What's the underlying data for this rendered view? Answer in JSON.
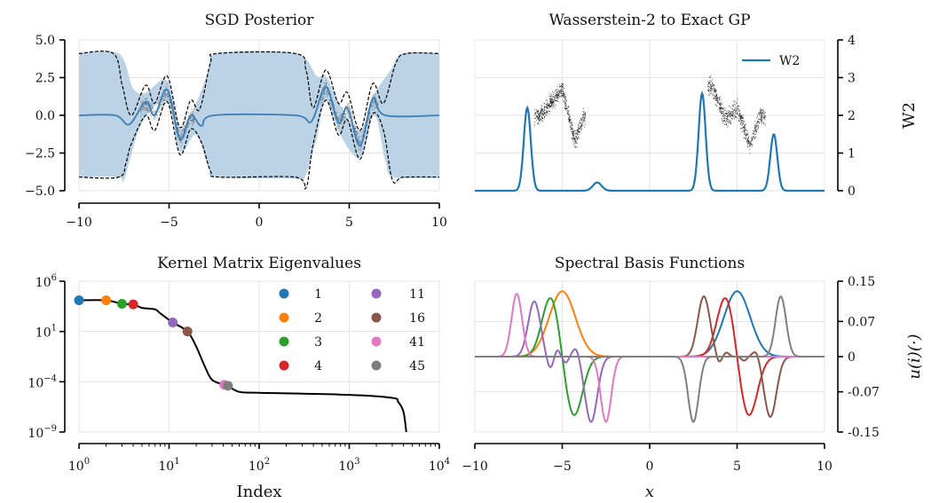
{
  "chart_data": [
    {
      "type": "line",
      "title": "SGD Posterior",
      "xlim": [
        -10,
        10
      ],
      "ylim": [
        -5,
        5
      ],
      "xticks": [
        -10,
        -5,
        0,
        5,
        10
      ],
      "xtick_labels": [
        "−10",
        "−5",
        "0",
        "5",
        "10"
      ],
      "yticks": [
        5,
        2.5,
        0,
        -2.5,
        -5
      ],
      "ytick_labels": [
        "5.0",
        "2.5",
        "0.0",
        "−2.5",
        "−5.0"
      ],
      "grid": true,
      "colors": {
        "mean": "#3b7fb8",
        "band": "#bcd3e6",
        "dashed": "#000000",
        "samples": "#333333"
      },
      "mean": [
        [
          -10,
          0
        ],
        [
          -8,
          0
        ],
        [
          -7.2,
          -0.6
        ],
        [
          -6.3,
          0.9
        ],
        [
          -5.8,
          0
        ],
        [
          -5.1,
          1.7
        ],
        [
          -4.4,
          -1.6
        ],
        [
          -3.8,
          0
        ],
        [
          -3.2,
          -0.7
        ],
        [
          -2.5,
          0
        ],
        [
          2,
          0
        ],
        [
          2.9,
          -0.4
        ],
        [
          3.7,
          1.9
        ],
        [
          4.4,
          -0.5
        ],
        [
          4.9,
          0.5
        ],
        [
          5.6,
          -2.0
        ],
        [
          6.3,
          1.1
        ],
        [
          7,
          0
        ],
        [
          10,
          0
        ]
      ],
      "band_upper": [
        [
          -10,
          4.1
        ],
        [
          -7.8,
          4.1
        ],
        [
          -7,
          1.8
        ],
        [
          -6.3,
          1.5
        ],
        [
          -5.1,
          2.3
        ],
        [
          -4.4,
          -0.9
        ],
        [
          -3.5,
          0.8
        ],
        [
          -2.8,
          3
        ],
        [
          -2.3,
          4.1
        ],
        [
          2,
          4.1
        ],
        [
          3.2,
          2.6
        ],
        [
          3.7,
          2.6
        ],
        [
          4.5,
          0.7
        ],
        [
          5.6,
          -1.0
        ],
        [
          6.4,
          1.4
        ],
        [
          7.3,
          3.0
        ],
        [
          8,
          4.1
        ],
        [
          10,
          4.1
        ]
      ],
      "band_lower": [
        [
          -10,
          -4.1
        ],
        [
          -7.8,
          -4.1
        ],
        [
          -7.5,
          -4.3
        ],
        [
          -6.5,
          -0.5
        ],
        [
          -5.1,
          0.9
        ],
        [
          -4.4,
          -2.4
        ],
        [
          -3.5,
          -1.3
        ],
        [
          -2.8,
          -3.5
        ],
        [
          -2.3,
          -4.1
        ],
        [
          2,
          -4.2
        ],
        [
          2.5,
          -4.2
        ],
        [
          3.2,
          -1.5
        ],
        [
          3.7,
          1.0
        ],
        [
          4.5,
          -1.3
        ],
        [
          5.6,
          -2.8
        ],
        [
          6.4,
          0
        ],
        [
          7,
          -3
        ],
        [
          7.5,
          -4.1
        ],
        [
          10,
          -4.1
        ]
      ],
      "exact_upper": [
        [
          -10,
          4.1
        ],
        [
          -8.1,
          4.1
        ],
        [
          -7.6,
          2.0
        ],
        [
          -7.1,
          0
        ],
        [
          -6.3,
          2.0
        ],
        [
          -5.8,
          0.8
        ],
        [
          -5.1,
          2.6
        ],
        [
          -4.4,
          -0.8
        ],
        [
          -3.8,
          1.0
        ],
        [
          -3.3,
          0.4
        ],
        [
          -2.7,
          3.5
        ],
        [
          -2.3,
          4.1
        ],
        [
          2,
          4.1
        ],
        [
          2.6,
          3.0
        ],
        [
          3.0,
          0.5
        ],
        [
          3.7,
          3.0
        ],
        [
          4.4,
          0.8
        ],
        [
          4.9,
          1.5
        ],
        [
          5.6,
          -1.0
        ],
        [
          6.3,
          2.1
        ],
        [
          6.9,
          0.8
        ],
        [
          7.6,
          3.5
        ],
        [
          8.2,
          4.1
        ],
        [
          10,
          4.1
        ]
      ],
      "exact_lower": [
        [
          -10,
          -4.1
        ],
        [
          -7.8,
          -4.1
        ],
        [
          -7.4,
          -3.2
        ],
        [
          -7.1,
          -1.9
        ],
        [
          -6.3,
          0
        ],
        [
          -5.8,
          -1
        ],
        [
          -5.1,
          0.9
        ],
        [
          -4.4,
          -2.6
        ],
        [
          -3.8,
          -0.9
        ],
        [
          -3.2,
          -1.8
        ],
        [
          -2.7,
          -3.7
        ],
        [
          -2.2,
          -4.1
        ],
        [
          2,
          -4.1
        ],
        [
          2.6,
          -4.8
        ],
        [
          3.0,
          -1.9
        ],
        [
          3.7,
          1.0
        ],
        [
          4.4,
          -1.3
        ],
        [
          4.9,
          -0.3
        ],
        [
          5.6,
          -2.9
        ],
        [
          6.3,
          0.1
        ],
        [
          6.9,
          -1.0
        ],
        [
          7.4,
          -4.3
        ],
        [
          8,
          -4.1
        ],
        [
          10,
          -4.1
        ]
      ],
      "observation_ranges": [
        [
          -6.6,
          -3.6
        ],
        [
          3.4,
          6.6
        ]
      ]
    },
    {
      "type": "line",
      "title": "Wasserstein-2 to Exact GP",
      "xlim": [
        -10,
        10
      ],
      "ylim": [
        0,
        4
      ],
      "yticks": [
        4,
        3,
        2,
        1,
        0
      ],
      "ytick_labels": [
        "4",
        "3",
        "2",
        "1",
        "0"
      ],
      "ylabel": "W2",
      "legend": {
        "label": "W2",
        "placement": "top-right"
      },
      "grid": true,
      "color": "#1f77b4",
      "peaks": [
        [
          -7,
          2.2,
          0.2
        ],
        [
          -3,
          0.22,
          0.25
        ],
        [
          3,
          2.58,
          0.2
        ],
        [
          7.1,
          1.5,
          0.2
        ]
      ],
      "scatter_curve": [
        [
          -6.3,
          2.0
        ],
        [
          -5.0,
          2.7
        ],
        [
          -4.3,
          1.3
        ],
        [
          -3.8,
          2.0
        ],
        [
          3.5,
          2.8
        ],
        [
          4.3,
          1.9
        ],
        [
          5.0,
          2.2
        ],
        [
          5.7,
          1.2
        ],
        [
          6.3,
          2.0
        ]
      ]
    },
    {
      "type": "line",
      "title": "Kernel Matrix Eigenvalues",
      "xlabel": "Index",
      "xscale": "log",
      "yscale": "log",
      "xlim_log10": [
        0,
        4
      ],
      "ylim_log10": [
        -9,
        6
      ],
      "xtick_labels": [
        [
          "10",
          "0"
        ],
        [
          "10",
          "1"
        ],
        [
          "10",
          "2"
        ],
        [
          "10",
          "3"
        ],
        [
          "10",
          "4"
        ]
      ],
      "ytick_labels": [
        [
          "10",
          "6"
        ],
        [
          "10",
          "1"
        ],
        [
          "10",
          "−4"
        ],
        [
          "10",
          "−9"
        ]
      ],
      "yticks_log10": [
        6,
        1,
        -4,
        -9
      ],
      "grid": true,
      "curve_log10": [
        [
          1,
          4.1
        ],
        [
          2,
          4.1
        ],
        [
          3,
          3.75
        ],
        [
          4,
          3.7
        ],
        [
          5,
          3.35
        ],
        [
          7,
          3.2
        ],
        [
          8,
          2.8
        ],
        [
          11,
          1.9
        ],
        [
          16,
          1.0
        ],
        [
          20,
          -0.5
        ],
        [
          25,
          -2.5
        ],
        [
          30,
          -3.8
        ],
        [
          41,
          -4.3
        ],
        [
          45,
          -4.4
        ],
        [
          60,
          -5.0
        ],
        [
          100,
          -5.1
        ],
        [
          1000,
          -5.3
        ],
        [
          3000,
          -5.6
        ],
        [
          3500,
          -6
        ],
        [
          4000,
          -7
        ],
        [
          4300,
          -9
        ]
      ],
      "markers": [
        {
          "index": 1,
          "log10_value": 4.1,
          "label": "1",
          "color": "#1f77b4"
        },
        {
          "index": 2,
          "log10_value": 4.1,
          "label": "2",
          "color": "#ff7f0e"
        },
        {
          "index": 3,
          "log10_value": 3.75,
          "label": "3",
          "color": "#2ca02c"
        },
        {
          "index": 4,
          "log10_value": 3.7,
          "label": "4",
          "color": "#d62728"
        },
        {
          "index": 11,
          "log10_value": 1.9,
          "label": "11",
          "color": "#9467bd"
        },
        {
          "index": 16,
          "log10_value": 1.0,
          "label": "16",
          "color": "#8c564b"
        },
        {
          "index": 41,
          "log10_value": -4.3,
          "label": "41",
          "color": "#e377c2"
        },
        {
          "index": 45,
          "log10_value": -4.4,
          "label": "45",
          "color": "#7f7f7f"
        }
      ]
    },
    {
      "type": "line",
      "title": "Spectral Basis Functions",
      "xlabel": "x",
      "ylabel": "u(i)(·)",
      "xlim": [
        -10,
        10
      ],
      "ylim": [
        -0.15,
        0.15
      ],
      "xticks": [
        -10,
        -5,
        0,
        5,
        10
      ],
      "xtick_labels": [
        "−10",
        "−5",
        "0",
        "5",
        "10"
      ],
      "yticks": [
        0.15,
        0.07,
        0,
        -0.07,
        -0.15
      ],
      "ytick_labels": [
        "0.15",
        "0.07",
        "0",
        "-0.07",
        "-0.15"
      ],
      "grid": true,
      "series": [
        {
          "name": "1",
          "color": "#1f77b4",
          "gaussians": [
            [
              5,
              0.13,
              0.75
            ]
          ]
        },
        {
          "name": "2",
          "color": "#ff7f0e",
          "gaussians": [
            [
              -5,
              0.13,
              0.75
            ]
          ]
        },
        {
          "name": "3",
          "color": "#2ca02c",
          "gaussians": [
            [
              -5.65,
              0.12,
              0.5
            ],
            [
              -4.35,
              -0.12,
              0.5
            ]
          ]
        },
        {
          "name": "4",
          "color": "#d62728",
          "gaussians": [
            [
              4.35,
              0.12,
              0.5
            ],
            [
              5.65,
              -0.12,
              0.5
            ]
          ]
        },
        {
          "name": "11",
          "color": "#9467bd",
          "gaussians": [
            [
              -6.6,
              0.11,
              0.35
            ],
            [
              -5.7,
              -0.025,
              0.2
            ],
            [
              -5.3,
              0.015,
              0.15
            ],
            [
              -4.8,
              -0.012,
              0.15
            ],
            [
              -4.2,
              0.02,
              0.2
            ],
            [
              -3.35,
              -0.13,
              0.35
            ]
          ]
        },
        {
          "name": "16",
          "color": "#8c564b",
          "gaussians": [
            [
              3.1,
              0.12,
              0.35
            ],
            [
              3.95,
              -0.015,
              0.15
            ],
            [
              4.4,
              0.008,
              0.15
            ],
            [
              5.4,
              -0.008,
              0.15
            ],
            [
              6.1,
              0.015,
              0.2
            ],
            [
              6.9,
              -0.12,
              0.35
            ]
          ]
        },
        {
          "name": "41",
          "color": "#e377c2",
          "gaussians": [
            [
              -7.6,
              0.125,
              0.3
            ],
            [
              -2.5,
              -0.13,
              0.3
            ]
          ]
        },
        {
          "name": "45",
          "color": "#7f7f7f",
          "gaussians": [
            [
              2.5,
              -0.13,
              0.3
            ],
            [
              7.5,
              0.12,
              0.3
            ]
          ]
        }
      ]
    }
  ]
}
